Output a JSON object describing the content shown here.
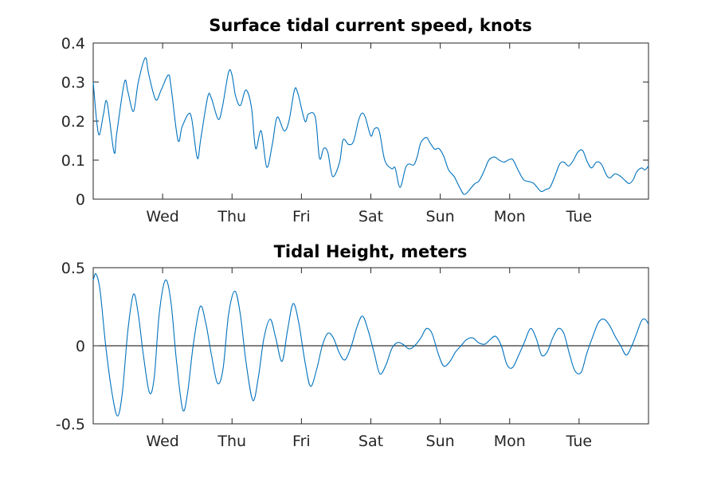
{
  "chart_data": [
    {
      "type": "line",
      "title": "Surface tidal current speed, knots",
      "xlabel": "",
      "ylabel": "",
      "xlim": [
        0,
        8
      ],
      "ylim": [
        0,
        0.4
      ],
      "y_ticks": [
        0,
        0.1,
        0.2,
        0.3,
        0.4
      ],
      "y_tick_labels": [
        "0",
        "0.1",
        "0.2",
        "0.3",
        "0.4"
      ],
      "x_ticks": [
        1,
        2,
        3,
        4,
        5,
        6,
        7
      ],
      "x_tick_labels": [
        "Wed",
        "Thu",
        "Fri",
        "Sat",
        "Sun",
        "Mon",
        "Tue"
      ],
      "grid": false,
      "zero_line": false,
      "line_color": "#0072bd",
      "series": [
        {
          "x": [
            0,
            0.05,
            0.09,
            0.15,
            0.2,
            0.3,
            0.34,
            0.45,
            0.5,
            0.58,
            0.65,
            0.75,
            0.8,
            0.9,
            0.98,
            1.08,
            1.12,
            1.22,
            1.28,
            1.37,
            1.42,
            1.5,
            1.55,
            1.65,
            1.7,
            1.8,
            1.86,
            1.95,
            2.0,
            2.05,
            2.12,
            2.2,
            2.28,
            2.34,
            2.42,
            2.5,
            2.58,
            2.65,
            2.75,
            2.82,
            2.9,
            2.95,
            3.05,
            3.1,
            3.2,
            3.26,
            3.32,
            3.38,
            3.45,
            3.55,
            3.6,
            3.68,
            3.75,
            3.82,
            3.87,
            3.92,
            4.0,
            4.05,
            4.12,
            4.2,
            4.3,
            4.35,
            4.42,
            4.5,
            4.55,
            4.62,
            4.67,
            4.72,
            4.8,
            4.85,
            4.92,
            4.98,
            5.05,
            5.12,
            5.2,
            5.28,
            5.35,
            5.45,
            5.5,
            5.55,
            5.6,
            5.65,
            5.7,
            5.78,
            5.85,
            5.92,
            6.0,
            6.05,
            6.12,
            6.2,
            6.28,
            6.35,
            6.45,
            6.52,
            6.58,
            6.65,
            6.72,
            6.78,
            6.85,
            6.92,
            6.98,
            7.05,
            7.12,
            7.18,
            7.25,
            7.32,
            7.4,
            7.45,
            7.52,
            7.6,
            7.65,
            7.72,
            7.78,
            7.83,
            7.9,
            7.95,
            8.0
          ],
          "y": [
            0.3,
            0.2,
            0.165,
            0.22,
            0.248,
            0.12,
            0.17,
            0.3,
            0.275,
            0.225,
            0.3,
            0.362,
            0.32,
            0.255,
            0.28,
            0.318,
            0.29,
            0.152,
            0.185,
            0.218,
            0.205,
            0.105,
            0.155,
            0.262,
            0.26,
            0.205,
            0.235,
            0.325,
            0.318,
            0.265,
            0.24,
            0.28,
            0.235,
            0.13,
            0.175,
            0.082,
            0.14,
            0.21,
            0.175,
            0.2,
            0.28,
            0.27,
            0.2,
            0.218,
            0.21,
            0.105,
            0.13,
            0.12,
            0.058,
            0.095,
            0.152,
            0.14,
            0.148,
            0.2,
            0.22,
            0.21,
            0.162,
            0.18,
            0.175,
            0.1,
            0.078,
            0.08,
            0.03,
            0.08,
            0.09,
            0.088,
            0.11,
            0.145,
            0.158,
            0.145,
            0.128,
            0.13,
            0.11,
            0.075,
            0.058,
            0.03,
            0.012,
            0.03,
            0.04,
            0.045,
            0.06,
            0.08,
            0.1,
            0.108,
            0.1,
            0.095,
            0.102,
            0.1,
            0.075,
            0.05,
            0.045,
            0.04,
            0.02,
            0.025,
            0.03,
            0.058,
            0.09,
            0.095,
            0.085,
            0.1,
            0.12,
            0.125,
            0.095,
            0.08,
            0.095,
            0.09,
            0.06,
            0.055,
            0.065,
            0.058,
            0.05,
            0.04,
            0.05,
            0.07,
            0.08,
            0.075,
            0.085
          ]
        }
      ]
    },
    {
      "type": "line",
      "title": "Tidal Height, meters",
      "xlabel": "",
      "ylabel": "",
      "xlim": [
        0,
        8
      ],
      "ylim": [
        -0.5,
        0.5
      ],
      "y_ticks": [
        -0.5,
        0,
        0.5
      ],
      "y_tick_labels": [
        "-0.5",
        "0",
        "0.5"
      ],
      "x_ticks": [
        1,
        2,
        3,
        4,
        5,
        6,
        7
      ],
      "x_tick_labels": [
        "Wed",
        "Thu",
        "Fri",
        "Sat",
        "Sun",
        "Mon",
        "Tue"
      ],
      "grid": false,
      "zero_line": true,
      "line_color": "#0072bd",
      "series": [
        {
          "x": [
            0,
            0.04,
            0.1,
            0.18,
            0.27,
            0.35,
            0.42,
            0.5,
            0.58,
            0.65,
            0.72,
            0.81,
            0.88,
            0.95,
            1.04,
            1.12,
            1.2,
            1.29,
            1.36,
            1.44,
            1.54,
            1.62,
            1.7,
            1.79,
            1.87,
            1.95,
            2.04,
            2.12,
            2.2,
            2.3,
            2.38,
            2.46,
            2.55,
            2.63,
            2.72,
            2.8,
            2.88,
            2.96,
            3.05,
            3.13,
            3.22,
            3.3,
            3.38,
            3.46,
            3.55,
            3.63,
            3.72,
            3.8,
            3.88,
            3.96,
            4.05,
            4.13,
            4.22,
            4.3,
            4.38,
            4.46,
            4.55,
            4.63,
            4.72,
            4.8,
            4.88,
            4.97,
            5.05,
            5.14,
            5.22,
            5.3,
            5.38,
            5.47,
            5.55,
            5.64,
            5.72,
            5.8,
            5.88,
            5.96,
            6.04,
            6.13,
            6.21,
            6.3,
            6.38,
            6.46,
            6.54,
            6.62,
            6.7,
            6.78,
            6.86,
            6.94,
            7.03,
            7.11,
            7.19,
            7.28,
            7.36,
            7.44,
            7.52,
            7.6,
            7.68,
            7.76,
            7.83,
            7.9,
            7.95,
            8.0
          ],
          "y": [
            0.42,
            0.46,
            0.35,
            0.0,
            -0.3,
            -0.45,
            -0.3,
            0.1,
            0.33,
            0.2,
            -0.05,
            -0.3,
            -0.2,
            0.2,
            0.42,
            0.28,
            -0.1,
            -0.41,
            -0.3,
            0.0,
            0.25,
            0.15,
            -0.05,
            -0.24,
            -0.15,
            0.2,
            0.35,
            0.2,
            -0.1,
            -0.35,
            -0.2,
            0.05,
            0.17,
            0.05,
            -0.1,
            0.1,
            0.27,
            0.15,
            -0.1,
            -0.26,
            -0.15,
            0.0,
            0.08,
            0.05,
            -0.05,
            -0.09,
            0.0,
            0.12,
            0.19,
            0.1,
            -0.05,
            -0.18,
            -0.12,
            -0.02,
            0.02,
            0.01,
            -0.02,
            0.0,
            0.05,
            0.11,
            0.08,
            -0.05,
            -0.13,
            -0.1,
            -0.04,
            0.0,
            0.04,
            0.05,
            0.02,
            0.01,
            0.04,
            0.06,
            0.0,
            -0.12,
            -0.14,
            -0.06,
            0.02,
            0.11,
            0.05,
            -0.06,
            -0.04,
            0.05,
            0.11,
            0.08,
            -0.05,
            -0.16,
            -0.17,
            -0.05,
            0.05,
            0.15,
            0.17,
            0.13,
            0.06,
            0.0,
            -0.06,
            0.0,
            0.08,
            0.16,
            0.17,
            0.14
          ]
        }
      ]
    }
  ]
}
